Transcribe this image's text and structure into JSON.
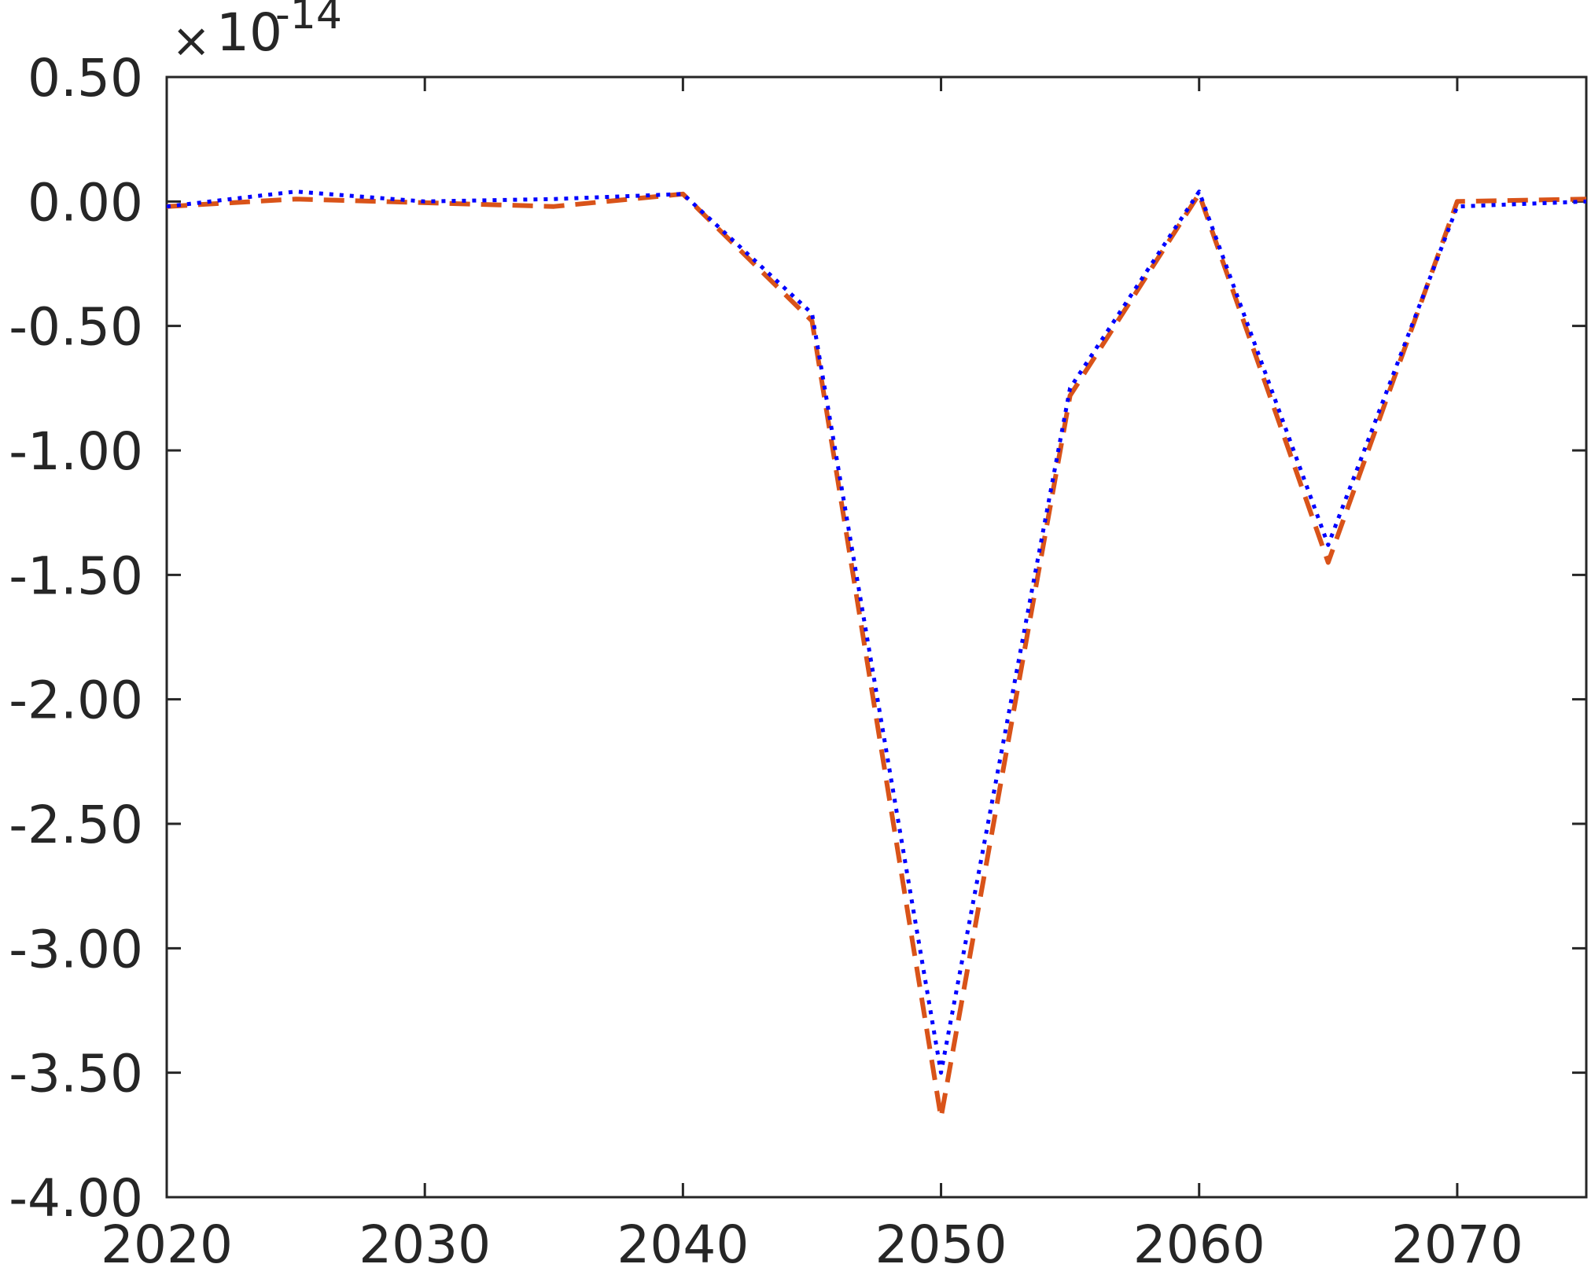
{
  "chart_data": {
    "type": "line",
    "xlim": [
      2020,
      2075
    ],
    "ylim": [
      -4.0,
      0.5
    ],
    "y_multiplier": {
      "base": "10",
      "exponent": "-14"
    },
    "x_ticks": [
      2020,
      2030,
      2040,
      2050,
      2060,
      2070
    ],
    "x_tick_labels": [
      "2020",
      "2030",
      "2040",
      "2050",
      "2060",
      "2070"
    ],
    "y_ticks": [
      0.5,
      0.0,
      -0.5,
      -1.0,
      -1.5,
      -2.0,
      -2.5,
      -3.0,
      -3.5,
      -4.0
    ],
    "y_tick_labels": [
      "0.50",
      "0.00",
      "-0.50",
      "-1.00",
      "-1.50",
      "-2.00",
      "-2.50",
      "-3.00",
      "-3.50",
      "-4.00"
    ],
    "grid": false,
    "x": [
      2020,
      2025,
      2030,
      2035,
      2040,
      2045,
      2050,
      2055,
      2060,
      2065,
      2070,
      2075
    ],
    "series": [
      {
        "color": "#D95319",
        "dash": "dashed",
        "values": [
          -0.02,
          0.01,
          -0.005,
          -0.02,
          0.03,
          -0.48,
          -3.68,
          -0.78,
          0.03,
          -1.45,
          0.0,
          0.01
        ]
      },
      {
        "color": "#0000FF",
        "dash": "dotted",
        "values": [
          -0.02,
          0.04,
          0.0,
          0.01,
          0.03,
          -0.45,
          -3.5,
          -0.75,
          0.04,
          -1.38,
          -0.02,
          0.0
        ]
      }
    ]
  }
}
